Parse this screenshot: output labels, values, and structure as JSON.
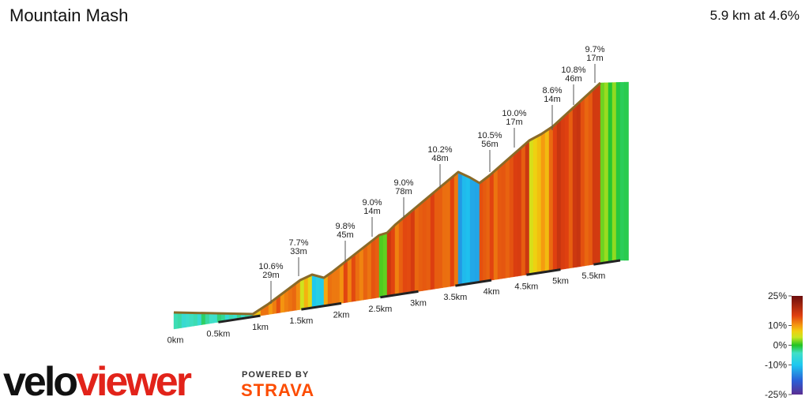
{
  "title": "Mountain Mash",
  "summary": "5.9 km at 4.6%",
  "logo": {
    "first": "velo",
    "second": "viewer"
  },
  "powered_by": "POWERED BY",
  "strava": "STRAVA",
  "chart_data": {
    "type": "elevation-profile",
    "climbs": [
      {
        "grade": "10.6%",
        "length": "29m"
      },
      {
        "grade": "7.7%",
        "length": "33m"
      },
      {
        "grade": "9.8%",
        "length": "45m"
      },
      {
        "grade": "9.0%",
        "length": "14m"
      },
      {
        "grade": "9.0%",
        "length": "78m"
      },
      {
        "grade": "10.2%",
        "length": "48m"
      },
      {
        "grade": "10.5%",
        "length": "56m"
      },
      {
        "grade": "10.0%",
        "length": "17m"
      },
      {
        "grade": "8.6%",
        "length": "14m"
      },
      {
        "grade": "10.8%",
        "length": "46m"
      },
      {
        "grade": "9.7%",
        "length": "17m"
      }
    ],
    "xticks": [
      {
        "value": 0,
        "label": "0km"
      },
      {
        "value": 0.5,
        "label": "0.5km"
      },
      {
        "value": 1,
        "label": "1km"
      },
      {
        "value": 1.5,
        "label": "1.5km"
      },
      {
        "value": 2,
        "label": "2km"
      },
      {
        "value": 2.5,
        "label": "2.5km"
      },
      {
        "value": 3,
        "label": "3km"
      },
      {
        "value": 3.5,
        "label": "3.5km"
      },
      {
        "value": 4,
        "label": "4km"
      },
      {
        "value": 4.5,
        "label": "4.5km"
      },
      {
        "value": 5,
        "label": "5km"
      },
      {
        "value": 5.5,
        "label": "5.5km"
      }
    ],
    "colorscale_lim": [
      -25,
      25
    ],
    "colorscale_ticks": [
      {
        "value": 25,
        "label": "25%"
      },
      {
        "value": 10,
        "label": "10%"
      },
      {
        "value": 0,
        "label": "0%"
      },
      {
        "value": -10,
        "label": "-10%"
      },
      {
        "value": -25,
        "label": "-25%"
      }
    ]
  }
}
